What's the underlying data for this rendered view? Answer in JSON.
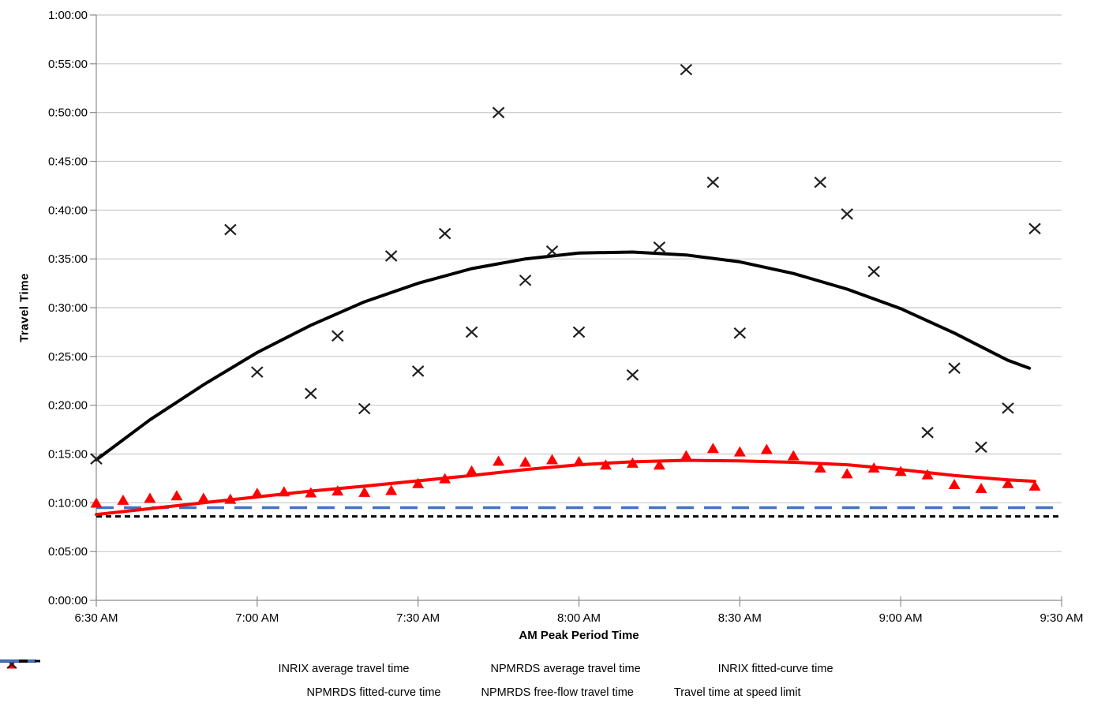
{
  "figure": {
    "background": "#FFFFFF"
  },
  "axes": {
    "x_title": "AM Peak Period Time",
    "y_title": "Travel Time",
    "grid_color": "#C8C8C8",
    "axis_color": "#8C8C8C",
    "tick_label_color": "#000000"
  },
  "chart_data": {
    "type": "scatter",
    "title": "",
    "xlabel": "AM Peak Period Time",
    "ylabel": "Travel Time",
    "x_tick_labels": [
      "6:30 AM",
      "7:00 AM",
      "7:30 AM",
      "8:00 AM",
      "8:30 AM",
      "9:00 AM",
      "9:30 AM"
    ],
    "y_tick_labels": [
      "0:00:00",
      "0:05:00",
      "0:10:00",
      "0:15:00",
      "0:20:00",
      "0:25:00",
      "0:30:00",
      "0:35:00",
      "0:40:00",
      "0:45:00",
      "0:50:00",
      "0:55:00",
      "1:00:00"
    ],
    "x_range_minutes": [
      0,
      180
    ],
    "y_range_minutes": [
      0,
      60
    ],
    "x_unit": "minutes after 6:30 AM",
    "y_unit": "travel time in decimal minutes (axis shows h:mm:ss)",
    "grid": "horizontal gridlines every 5 minutes, no vertical gridlines",
    "legend_position": "bottom, two centered rows",
    "series": [
      {
        "name": "INRIX average travel time",
        "type": "scatter",
        "marker": "triangle",
        "color": "#FF0000",
        "z": 6,
        "points": [
          [
            0,
            10.0
          ],
          [
            5,
            10.3
          ],
          [
            10,
            10.5
          ],
          [
            15,
            10.75
          ],
          [
            20,
            10.5
          ],
          [
            25,
            10.4
          ],
          [
            30,
            11.0
          ],
          [
            35,
            11.15
          ],
          [
            40,
            11.05
          ],
          [
            45,
            11.25
          ],
          [
            50,
            11.1
          ],
          [
            55,
            11.3
          ],
          [
            60,
            12.0
          ],
          [
            65,
            12.5
          ],
          [
            70,
            13.3
          ],
          [
            75,
            14.3
          ],
          [
            80,
            14.2
          ],
          [
            85,
            14.45
          ],
          [
            90,
            14.25
          ],
          [
            95,
            13.9
          ],
          [
            100,
            14.1
          ],
          [
            105,
            13.9
          ],
          [
            110,
            14.85
          ],
          [
            115,
            15.6
          ],
          [
            120,
            15.25
          ],
          [
            125,
            15.5
          ],
          [
            130,
            14.85
          ],
          [
            135,
            13.6
          ],
          [
            140,
            13.0
          ],
          [
            145,
            13.6
          ],
          [
            150,
            13.25
          ],
          [
            155,
            12.9
          ],
          [
            160,
            11.9
          ],
          [
            165,
            11.5
          ],
          [
            170,
            12.0
          ],
          [
            175,
            11.75
          ]
        ]
      },
      {
        "name": "NPMRDS average travel time",
        "type": "scatter",
        "marker": "x",
        "color": "#1F1F1F",
        "z": 5,
        "points": [
          [
            0,
            14.5
          ],
          [
            25,
            38.0
          ],
          [
            30,
            23.4
          ],
          [
            40,
            21.2
          ],
          [
            45,
            27.1
          ],
          [
            50,
            19.65
          ],
          [
            55,
            35.3
          ],
          [
            60,
            23.5
          ],
          [
            65,
            37.6
          ],
          [
            70,
            27.5
          ],
          [
            75,
            50.0
          ],
          [
            80,
            32.8
          ],
          [
            85,
            35.8
          ],
          [
            90,
            27.5
          ],
          [
            100,
            23.1
          ],
          [
            105,
            36.2
          ],
          [
            110,
            54.4
          ],
          [
            115,
            42.85
          ],
          [
            120,
            27.4
          ],
          [
            135,
            42.85
          ],
          [
            140,
            39.6
          ],
          [
            145,
            33.7
          ],
          [
            155,
            17.2
          ],
          [
            160,
            23.8
          ],
          [
            165,
            15.7
          ],
          [
            170,
            19.7
          ],
          [
            175,
            38.1
          ]
        ]
      },
      {
        "name": "INRIX fitted-curve time",
        "type": "line",
        "style": "solid",
        "color": "#FF0000",
        "width": 4,
        "z": 4,
        "points": [
          [
            0,
            8.8
          ],
          [
            10,
            9.4
          ],
          [
            20,
            10.0
          ],
          [
            30,
            10.6
          ],
          [
            40,
            11.2
          ],
          [
            50,
            11.7
          ],
          [
            60,
            12.25
          ],
          [
            70,
            12.8
          ],
          [
            80,
            13.4
          ],
          [
            90,
            13.9
          ],
          [
            100,
            14.2
          ],
          [
            110,
            14.35
          ],
          [
            120,
            14.3
          ],
          [
            130,
            14.15
          ],
          [
            140,
            13.9
          ],
          [
            150,
            13.4
          ],
          [
            160,
            12.8
          ],
          [
            170,
            12.35
          ],
          [
            175,
            12.2
          ]
        ]
      },
      {
        "name": "NPMRDS fitted-curve time",
        "type": "line",
        "style": "solid",
        "color": "#000000",
        "width": 4,
        "z": 1,
        "points": [
          [
            0,
            14.4
          ],
          [
            10,
            18.5
          ],
          [
            20,
            22.1
          ],
          [
            30,
            25.4
          ],
          [
            40,
            28.2
          ],
          [
            50,
            30.6
          ],
          [
            60,
            32.5
          ],
          [
            70,
            34.0
          ],
          [
            80,
            35.0
          ],
          [
            90,
            35.6
          ],
          [
            100,
            35.7
          ],
          [
            110,
            35.4
          ],
          [
            120,
            34.7
          ],
          [
            130,
            33.5
          ],
          [
            140,
            31.9
          ],
          [
            150,
            29.9
          ],
          [
            160,
            27.4
          ],
          [
            170,
            24.6
          ],
          [
            174,
            23.8
          ]
        ]
      },
      {
        "name": "NPMRDS free-flow travel time",
        "type": "line",
        "style": "dashed",
        "color": "#000000",
        "width": 3,
        "dash": "7 5",
        "z": 2,
        "points": [
          [
            0,
            8.6
          ],
          [
            180,
            8.6
          ]
        ]
      },
      {
        "name": "Travel time at speed limit",
        "type": "line",
        "style": "long-dash",
        "color": "#4472C4",
        "width": 3.5,
        "dash": "22 13",
        "z": 3,
        "points": [
          [
            0,
            9.5
          ],
          [
            180,
            9.5
          ]
        ]
      }
    ]
  },
  "legend": {
    "rows": [
      [
        0,
        1,
        2
      ],
      [
        3,
        4,
        5
      ]
    ]
  }
}
